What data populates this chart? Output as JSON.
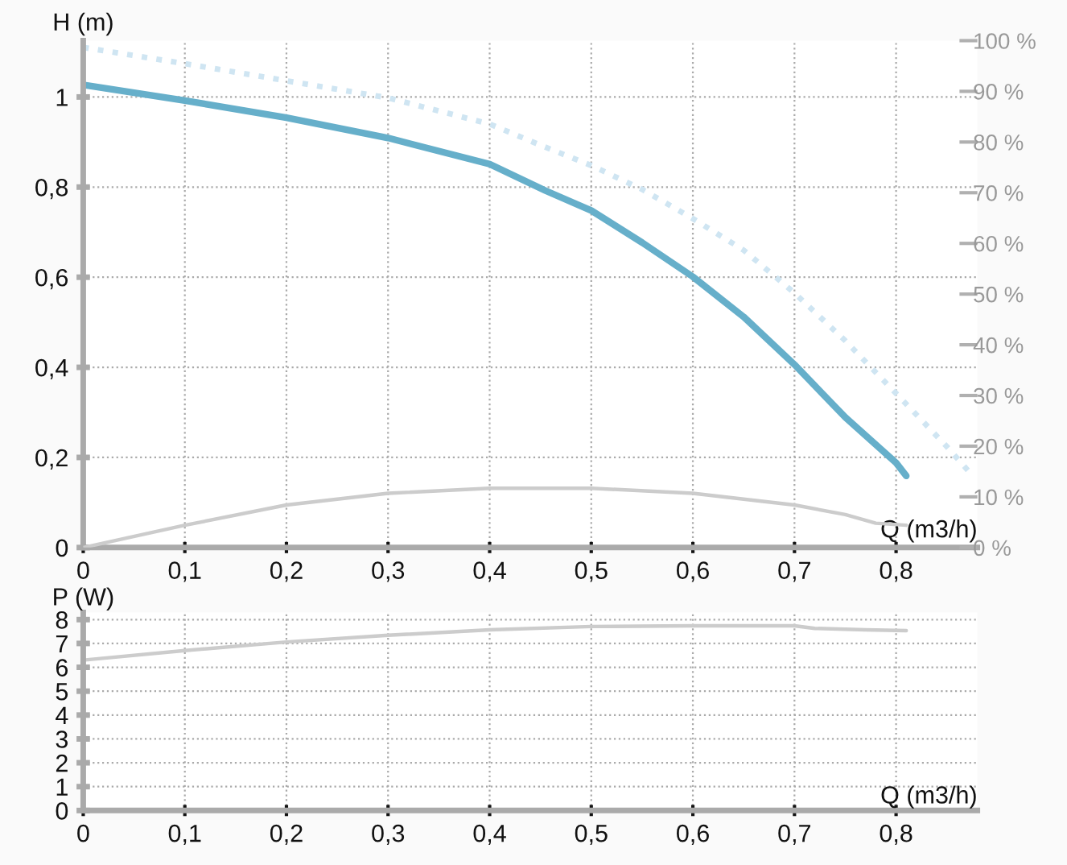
{
  "chart_data": [
    {
      "type": "line",
      "xlabel": "Q (m3/h)",
      "ylabel": "H (m)",
      "grid": true,
      "legend": false,
      "xlim": [
        0,
        0.88
      ],
      "xticks": [
        0,
        {
          "value": 0.1,
          "label": "0,1"
        },
        {
          "value": 0.2,
          "label": "0,2"
        },
        {
          "value": 0.3,
          "label": "0,3"
        },
        {
          "value": 0.4,
          "label": "0,4"
        },
        {
          "value": 0.5,
          "label": "0,5"
        },
        {
          "value": 0.6,
          "label": "0,6"
        },
        {
          "value": 0.7,
          "label": "0,7"
        },
        {
          "value": 0.8,
          "label": "0,8"
        }
      ],
      "ylim": [
        0,
        1.125
      ],
      "yticks": [
        0,
        {
          "value": 0.2,
          "label": "0,2"
        },
        {
          "value": 0.4,
          "label": "0,4"
        },
        {
          "value": 0.6,
          "label": "0,6"
        },
        {
          "value": 0.8,
          "label": "0,8"
        },
        1
      ],
      "y2lim": [
        0,
        100
      ],
      "y2ticks": [
        {
          "value": 0,
          "label": "0 %"
        },
        {
          "value": 10,
          "label": "10 %"
        },
        {
          "value": 20,
          "label": "20 %"
        },
        {
          "value": 30,
          "label": "30 %"
        },
        {
          "value": 40,
          "label": "40 %"
        },
        {
          "value": 50,
          "label": "50 %"
        },
        {
          "value": 60,
          "label": "60 %"
        },
        {
          "value": 70,
          "label": "70 %"
        },
        {
          "value": 80,
          "label": "80 %"
        },
        {
          "value": 90,
          "label": "90 %"
        },
        {
          "value": 100,
          "label": "100 %"
        }
      ],
      "series": [
        {
          "color": "#cfe5f2",
          "line_style": "dotted",
          "x": [
            0,
            0.1,
            0.2,
            0.3,
            0.4,
            0.45,
            0.5,
            0.55,
            0.6,
            0.65,
            0.7,
            0.75,
            0.8,
            0.85,
            0.875
          ],
          "values": [
            1.11,
            1.074,
            1.036,
            0.998,
            0.94,
            0.893,
            0.848,
            0.795,
            0.73,
            0.66,
            0.565,
            0.459,
            0.342,
            0.224,
            0.16
          ]
        },
        {
          "color": "#66afca",
          "line_style": "solid",
          "x": [
            0,
            0.1,
            0.2,
            0.3,
            0.4,
            0.455,
            0.5,
            0.55,
            0.6,
            0.65,
            0.7,
            0.75,
            0.8,
            0.81
          ],
          "values": [
            1.027,
            0.992,
            0.954,
            0.909,
            0.851,
            0.792,
            0.748,
            0.677,
            0.601,
            0.512,
            0.406,
            0.289,
            0.188,
            0.159
          ]
        },
        {
          "color": "#cccccc",
          "line_style": "solid",
          "axis": "y2",
          "x": [
            0,
            0.1,
            0.2,
            0.3,
            0.4,
            0.5,
            0.6,
            0.7,
            0.75,
            0.78,
            0.81
          ],
          "values": [
            0,
            4.4,
            8.4,
            10.7,
            11.7,
            11.7,
            10.7,
            8.4,
            6.5,
            4.8,
            4.4
          ]
        }
      ]
    },
    {
      "type": "line",
      "xlabel": "Q (m3/h)",
      "ylabel": "P (W)",
      "grid": true,
      "legend": false,
      "xlim": [
        0,
        0.88
      ],
      "xticks": [
        0,
        {
          "value": 0.1,
          "label": "0,1"
        },
        {
          "value": 0.2,
          "label": "0,2"
        },
        {
          "value": 0.3,
          "label": "0,3"
        },
        {
          "value": 0.4,
          "label": "0,4"
        },
        {
          "value": 0.5,
          "label": "0,5"
        },
        {
          "value": 0.6,
          "label": "0,6"
        },
        {
          "value": 0.7,
          "label": "0,7"
        },
        {
          "value": 0.8,
          "label": "0,8"
        }
      ],
      "ylim": [
        0,
        8.3
      ],
      "yticks": [
        0,
        1,
        2,
        3,
        4,
        5,
        6,
        7,
        8
      ],
      "series": [
        {
          "color": "#cccccc",
          "line_style": "solid",
          "x": [
            0,
            0.1,
            0.2,
            0.3,
            0.4,
            0.5,
            0.6,
            0.7,
            0.72,
            0.77,
            0.81
          ],
          "values": [
            6.3,
            6.7,
            7.06,
            7.34,
            7.57,
            7.71,
            7.74,
            7.74,
            7.63,
            7.57,
            7.54
          ]
        }
      ]
    }
  ]
}
